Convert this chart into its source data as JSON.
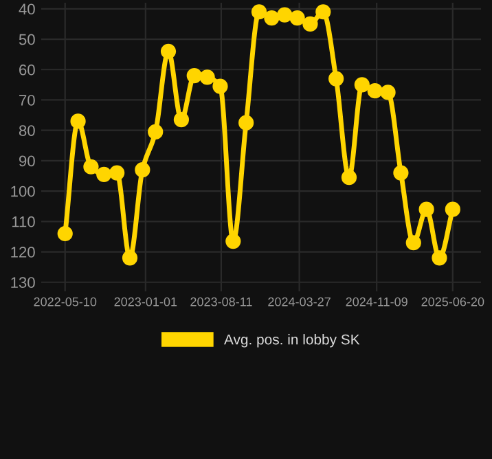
{
  "chart_data": {
    "type": "line",
    "x": [
      "2022-05-10",
      "2022-06-17",
      "2022-07-25",
      "2022-09-01",
      "2022-10-09",
      "2022-11-16",
      "2022-12-23",
      "2023-01-30",
      "2023-03-09",
      "2023-04-16",
      "2023-05-24",
      "2023-07-01",
      "2023-08-08",
      "2023-09-15",
      "2023-10-23",
      "2023-11-30",
      "2024-01-06",
      "2024-02-13",
      "2024-03-21",
      "2024-04-28",
      "2024-06-05",
      "2024-07-13",
      "2024-08-20",
      "2024-09-27",
      "2024-11-04",
      "2024-12-12",
      "2025-01-19",
      "2025-02-25",
      "2025-04-04",
      "2025-05-12",
      "2025-06-20"
    ],
    "series": [
      {
        "name": "Avg. pos. in lobby SK",
        "color": "#ffd500",
        "values": [
          114,
          77,
          92,
          94.5,
          94,
          122,
          93,
          80.5,
          54,
          76.5,
          62,
          62.5,
          65.5,
          116.5,
          77.5,
          41,
          43,
          42,
          43,
          45,
          41,
          63,
          95.5,
          65,
          67,
          67.5,
          94,
          117,
          106,
          122,
          106
        ]
      }
    ],
    "xlim": [
      "2022-03-01",
      "2025-09-11"
    ],
    "xticks": [
      "2022-05-10",
      "2023-01-01",
      "2023-08-11",
      "2024-03-27",
      "2024-11-09",
      "2025-06-20"
    ],
    "ylim": [
      133,
      38
    ],
    "yticks": [
      40,
      50,
      60,
      70,
      80,
      90,
      100,
      110,
      120,
      130
    ],
    "grid": true,
    "legend": "bottom",
    "marker": "circle",
    "line_style": "solid"
  }
}
